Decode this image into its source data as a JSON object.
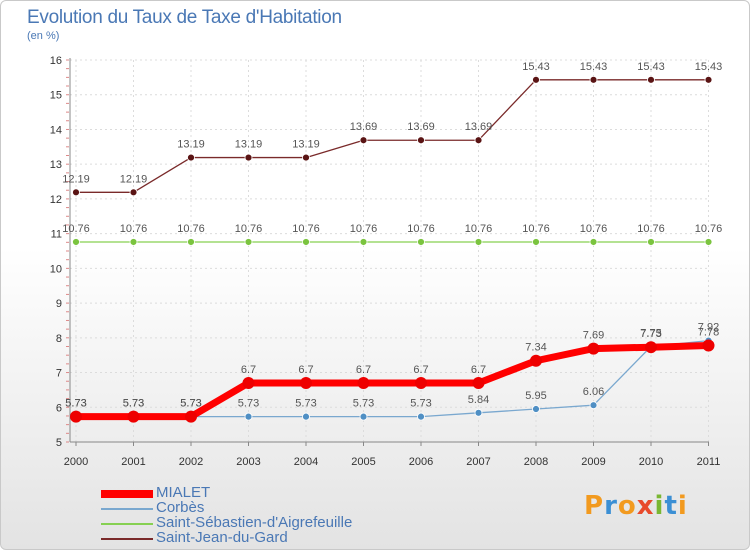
{
  "header": {
    "title": "Evolution du Taux de Taxe d'Habitation",
    "subtitle": "(en %)"
  },
  "logo": {
    "text": "Proxiti",
    "colors": [
      "#f29a1f",
      "#3b8fd4",
      "#f29a1f",
      "#e84a2c",
      "#7ab733",
      "#3b8fd4",
      "#f29a1f"
    ]
  },
  "chart_data": {
    "type": "line",
    "title": "Evolution du Taux de Taxe d'Habitation",
    "ylabel": "(en %)",
    "xlabel": "",
    "categories": [
      "2000",
      "2001",
      "2002",
      "2003",
      "2004",
      "2005",
      "2006",
      "2007",
      "2008",
      "2009",
      "2010",
      "2011"
    ],
    "ylim": [
      5,
      16
    ],
    "yticks": [
      5,
      6,
      7,
      8,
      9,
      10,
      11,
      12,
      13,
      14,
      15,
      16
    ],
    "grid": true,
    "legend_position": "bottom-left",
    "series": [
      {
        "name": "Saint-Jean-du-Gard",
        "color": "#7a2a2a",
        "marker": "#5a1414",
        "width": 1.3,
        "labels": true,
        "values": [
          12.19,
          12.19,
          13.19,
          13.19,
          13.19,
          13.69,
          13.69,
          13.69,
          15.43,
          15.43,
          15.43,
          15.43
        ]
      },
      {
        "name": "Saint-Sébastien-d'Aigrefeuille",
        "color": "#86d052",
        "marker": "#7bc43f",
        "width": 1.3,
        "labels": true,
        "values": [
          10.76,
          10.76,
          10.76,
          10.76,
          10.76,
          10.76,
          10.76,
          10.76,
          10.76,
          10.76,
          10.76,
          10.76
        ]
      },
      {
        "name": "Corbès",
        "color": "#7aa8cf",
        "marker": "#4f8fc4",
        "width": 1.3,
        "labels": true,
        "values": [
          5.73,
          5.73,
          5.73,
          5.73,
          5.73,
          5.73,
          5.73,
          5.84,
          5.95,
          6.06,
          7.75,
          7.92
        ]
      },
      {
        "name": "MIALET",
        "color": "#ff0000",
        "marker": "#ee0000",
        "width": 7,
        "labels": true,
        "values": [
          5.73,
          5.73,
          5.73,
          6.7,
          6.7,
          6.7,
          6.7,
          6.7,
          7.34,
          7.69,
          7.73,
          7.78
        ]
      }
    ],
    "legend_order": [
      "MIALET",
      "Corbès",
      "Saint-Sébastien-d'Aigrefeuille",
      "Saint-Jean-du-Gard"
    ]
  }
}
